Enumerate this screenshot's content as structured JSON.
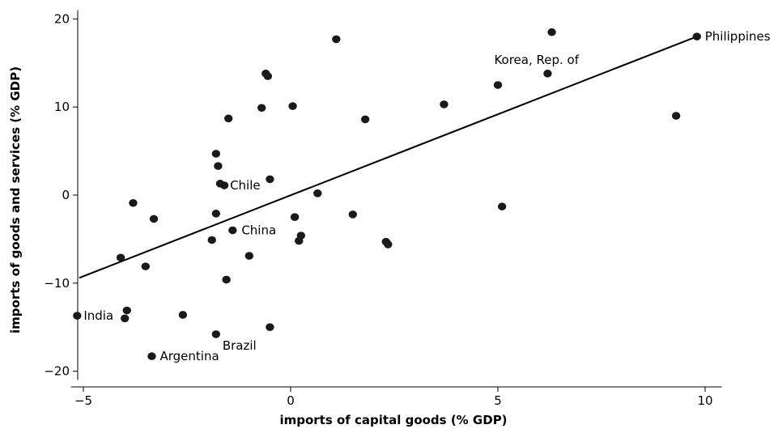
{
  "chart_data": {
    "type": "scatter",
    "xlabel": "imports of capital goods (% GDP)",
    "ylabel": "imports of goods and services (% GDP)",
    "xlim": [
      -5.3,
      10.4
    ],
    "ylim": [
      -21,
      21
    ],
    "xticks": [
      -5,
      0,
      5,
      10
    ],
    "yticks": [
      -20,
      -10,
      0,
      10,
      20
    ],
    "grid": false,
    "points": [
      {
        "x": 9.8,
        "y": 18.0,
        "label": "Philippines"
      },
      {
        "x": 6.3,
        "y": 18.5,
        "label": ""
      },
      {
        "x": 1.1,
        "y": 17.7,
        "label": ""
      },
      {
        "x": 6.2,
        "y": 13.8,
        "label": "Korea, Rep. of"
      },
      {
        "x": -0.6,
        "y": 13.8,
        "label": ""
      },
      {
        "x": -0.55,
        "y": 13.5,
        "label": ""
      },
      {
        "x": 5.0,
        "y": 12.5,
        "label": ""
      },
      {
        "x": 3.7,
        "y": 10.3,
        "label": ""
      },
      {
        "x": 0.05,
        "y": 10.1,
        "label": ""
      },
      {
        "x": -0.7,
        "y": 9.9,
        "label": ""
      },
      {
        "x": -1.5,
        "y": 8.7,
        "label": ""
      },
      {
        "x": 1.8,
        "y": 8.6,
        "label": ""
      },
      {
        "x": 9.3,
        "y": 9.0,
        "label": ""
      },
      {
        "x": -1.8,
        "y": 4.7,
        "label": ""
      },
      {
        "x": -1.75,
        "y": 3.3,
        "label": ""
      },
      {
        "x": -0.5,
        "y": 1.8,
        "label": ""
      },
      {
        "x": -1.7,
        "y": 1.3,
        "label": ""
      },
      {
        "x": -1.6,
        "y": 1.1,
        "label": "Chile"
      },
      {
        "x": 0.65,
        "y": 0.2,
        "label": ""
      },
      {
        "x": -3.8,
        "y": -0.9,
        "label": ""
      },
      {
        "x": 5.1,
        "y": -1.3,
        "label": ""
      },
      {
        "x": -1.8,
        "y": -2.1,
        "label": ""
      },
      {
        "x": 1.5,
        "y": -2.2,
        "label": ""
      },
      {
        "x": 0.1,
        "y": -2.5,
        "label": ""
      },
      {
        "x": -3.3,
        "y": -2.7,
        "label": ""
      },
      {
        "x": -1.4,
        "y": -4.0,
        "label": "China"
      },
      {
        "x": 0.25,
        "y": -4.6,
        "label": ""
      },
      {
        "x": -1.9,
        "y": -5.1,
        "label": ""
      },
      {
        "x": 0.2,
        "y": -5.2,
        "label": ""
      },
      {
        "x": 2.3,
        "y": -5.3,
        "label": ""
      },
      {
        "x": 2.35,
        "y": -5.6,
        "label": ""
      },
      {
        "x": -4.1,
        "y": -7.1,
        "label": ""
      },
      {
        "x": -1.0,
        "y": -6.9,
        "label": ""
      },
      {
        "x": -3.5,
        "y": -8.1,
        "label": ""
      },
      {
        "x": -1.55,
        "y": -9.6,
        "label": ""
      },
      {
        "x": -5.15,
        "y": -13.7,
        "label": "India"
      },
      {
        "x": -3.95,
        "y": -13.1,
        "label": ""
      },
      {
        "x": -4.0,
        "y": -14.0,
        "label": ""
      },
      {
        "x": -2.6,
        "y": -13.6,
        "label": ""
      },
      {
        "x": -0.5,
        "y": -15.0,
        "label": ""
      },
      {
        "x": -1.8,
        "y": -15.8,
        "label": "Brazil"
      },
      {
        "x": -3.35,
        "y": -18.3,
        "label": "Argentina"
      }
    ],
    "fit_line": {
      "x1": -5.1,
      "y1": -9.4,
      "x2": 9.8,
      "y2": 18.0
    }
  }
}
